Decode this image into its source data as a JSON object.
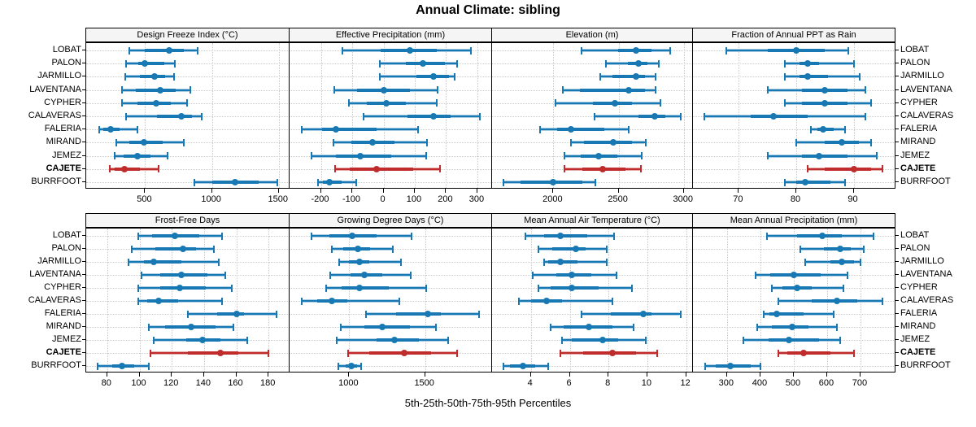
{
  "title": "Annual Climate: sibling",
  "caption": "5th-25th-50th-75th-95th Percentiles",
  "sites": [
    "LOBAT",
    "PALON",
    "JARMILLO",
    "LAVENTANA",
    "CYPHER",
    "CALAVERAS",
    "FALERIA",
    "MIRAND",
    "JEMEZ",
    "CAJETE",
    "BURRFOOT"
  ],
  "highlight_site": "CAJETE",
  "colors": {
    "series_main": "#1878b4",
    "series_light": "#a8cce4",
    "highlight_main": "#c02b2b",
    "highlight_light": "#e4a9a9",
    "grid": "#c9c9c9",
    "strip_bg": "#f5f5f5",
    "border": "#000000"
  },
  "chart_data": [
    {
      "type": "dotplot-interval",
      "title": "Design Freeze Index (°C)",
      "grid_row": 0,
      "grid_col": 0,
      "xlim": [
        60,
        1580
      ],
      "ticks": [
        500,
        1000,
        1500
      ],
      "percentile_labels": [
        "p5",
        "p25",
        "p50",
        "p75",
        "p95"
      ],
      "values": {
        "LOBAT": [
          380,
          500,
          680,
          790,
          890
        ],
        "PALON": [
          360,
          450,
          500,
          645,
          725
        ],
        "JARMILLO": [
          350,
          460,
          570,
          650,
          715
        ],
        "LAVENTANA": [
          325,
          430,
          610,
          730,
          835
        ],
        "CYPHER": [
          325,
          440,
          580,
          690,
          815
        ],
        "CALAVERAS": [
          355,
          590,
          770,
          850,
          925
        ],
        "FALERIA": [
          155,
          185,
          245,
          310,
          445
        ],
        "MIRAND": [
          285,
          380,
          490,
          630,
          790
        ],
        "JEMEZ": [
          270,
          340,
          440,
          540,
          670
        ],
        "CAJETE": [
          235,
          270,
          345,
          460,
          600
        ],
        "BURRFOOT": [
          870,
          1000,
          1170,
          1350,
          1490
        ]
      }
    },
    {
      "type": "dotplot-interval",
      "title": "Effective Precipitation (mm)",
      "grid_row": 0,
      "grid_col": 1,
      "xlim": [
        -300,
        347
      ],
      "ticks": [
        -200,
        -100,
        0,
        100,
        200,
        300
      ],
      "values": {
        "LOBAT": [
          -130,
          -8,
          85,
          170,
          280
        ],
        "PALON": [
          -13,
          71,
          127,
          196,
          234
        ],
        "JARMILLO": [
          -13,
          104,
          161,
          208,
          228
        ],
        "LAVENTANA": [
          -156,
          -85,
          0,
          85,
          174
        ],
        "CYPHER": [
          -110,
          -54,
          9,
          72,
          170
        ],
        "CALAVERAS": [
          -64,
          76,
          159,
          215,
          308
        ],
        "FALERIA": [
          -260,
          -197,
          -153,
          -23,
          110
        ],
        "MIRAND": [
          -160,
          -103,
          -34,
          35,
          140
        ],
        "JEMEZ": [
          -230,
          -153,
          -73,
          26,
          137
        ],
        "CAJETE": [
          -155,
          -107,
          -23,
          94,
          180
        ],
        "BURRFOOT": [
          -210,
          -194,
          -173,
          -133,
          -88
        ]
      }
    },
    {
      "type": "dotplot-interval",
      "title": "Elevation (m)",
      "grid_row": 0,
      "grid_col": 2,
      "xlim": [
        1530,
        3070
      ],
      "ticks": [
        2000,
        2500,
        3000
      ],
      "values": {
        "LOBAT": [
          2215,
          2495,
          2635,
          2755,
          2895
        ],
        "PALON": [
          2400,
          2570,
          2655,
          2720,
          2810
        ],
        "JARMILLO": [
          2360,
          2455,
          2635,
          2700,
          2780
        ],
        "LAVENTANA": [
          2075,
          2205,
          2575,
          2700,
          2780
        ],
        "CYPHER": [
          2015,
          2300,
          2470,
          2600,
          2820
        ],
        "CALAVERAS": [
          2315,
          2650,
          2775,
          2860,
          2975
        ],
        "FALERIA": [
          1900,
          2030,
          2135,
          2390,
          2575
        ],
        "MIRAND": [
          2135,
          2235,
          2460,
          2600,
          2705
        ],
        "JEMEZ": [
          2085,
          2210,
          2345,
          2490,
          2675
        ],
        "CAJETE": [
          2085,
          2220,
          2375,
          2550,
          2670
        ],
        "BURRFOOT": [
          1615,
          1750,
          1995,
          2220,
          2320
        ]
      }
    },
    {
      "type": "dotplot-interval",
      "title": "Fraction of Annual PPT as Rain",
      "grid_row": 0,
      "grid_col": 3,
      "xlim": [
        62,
        97.3
      ],
      "ticks": [
        70,
        80,
        90
      ],
      "values": {
        "LOBAT": [
          67.8,
          75,
          80,
          85,
          89
        ],
        "PALON": [
          78,
          80.5,
          82,
          84,
          90
        ],
        "JARMILLO": [
          78,
          80.5,
          82,
          85.5,
          91
        ],
        "LAVENTANA": [
          75,
          81,
          85,
          89,
          92
        ],
        "CYPHER": [
          78,
          81,
          85,
          89,
          93
        ],
        "CALAVERAS": [
          64,
          72,
          76,
          82,
          92
        ],
        "FALERIA": [
          82.5,
          83.7,
          84.7,
          86.5,
          88.5
        ],
        "MIRAND": [
          80,
          85,
          88,
          91,
          93
        ],
        "JEMEZ": [
          75,
          81,
          84,
          89,
          94
        ],
        "CAJETE": [
          82,
          85,
          90,
          93,
          95
        ],
        "BURRFOOT": [
          78,
          80,
          81.5,
          86,
          88.5
        ]
      }
    },
    {
      "type": "dotplot-interval",
      "title": "Frost-Free Days",
      "grid_row": 1,
      "grid_col": 0,
      "xlim": [
        67,
        193
      ],
      "ticks": [
        80,
        100,
        120,
        140,
        160,
        180
      ],
      "values": {
        "LOBAT": [
          99,
          108,
          122,
          137,
          151
        ],
        "PALON": [
          95,
          110,
          127,
          135,
          146
        ],
        "JARMILLO": [
          93,
          103,
          109,
          126,
          149
        ],
        "LAVENTANA": [
          101,
          113,
          126,
          142,
          153
        ],
        "CYPHER": [
          99,
          113,
          125,
          141,
          157
        ],
        "CALAVERAS": [
          99,
          105,
          112,
          124,
          151
        ],
        "FALERIA": [
          130,
          148,
          160,
          165,
          185
        ],
        "MIRAND": [
          106,
          116,
          132,
          147,
          158
        ],
        "JEMEZ": [
          109,
          129,
          139,
          150,
          167
        ],
        "CAJETE": [
          107,
          130,
          150,
          161,
          180
        ],
        "BURRFOOT": [
          74,
          83,
          89,
          97,
          106
        ]
      }
    },
    {
      "type": "dotplot-interval",
      "title": "Growing Degree Days (°C)",
      "grid_row": 1,
      "grid_col": 1,
      "xlim": [
        607,
        1941
      ],
      "ticks": [
        1000,
        1500
      ],
      "values": {
        "LOBAT": [
          750,
          870,
          1020,
          1180,
          1410
        ],
        "PALON": [
          885,
          960,
          1055,
          1140,
          1285
        ],
        "JARMILLO": [
          935,
          1000,
          1065,
          1130,
          1340
        ],
        "LAVENTANA": [
          875,
          1010,
          1100,
          1220,
          1405
        ],
        "CYPHER": [
          850,
          950,
          1070,
          1260,
          1505
        ],
        "CALAVERAS": [
          685,
          790,
          885,
          990,
          1330
        ],
        "FALERIA": [
          1110,
          1310,
          1520,
          1605,
          1855
        ],
        "MIRAND": [
          945,
          1100,
          1220,
          1400,
          1570
        ],
        "JEMEZ": [
          920,
          1180,
          1300,
          1460,
          1650
        ],
        "CAJETE": [
          995,
          1130,
          1360,
          1540,
          1710
        ],
        "BURRFOOT": [
          930,
          975,
          1015,
          1050,
          1080
        ]
      }
    },
    {
      "type": "dotplot-interval",
      "title": "Mean Annual Air Temperature (°C)",
      "grid_row": 1,
      "grid_col": 2,
      "xlim": [
        2.0,
        12.35
      ],
      "ticks": [
        4,
        6,
        8,
        10,
        12
      ],
      "values": {
        "LOBAT": [
          3.7,
          4.7,
          5.5,
          6.9,
          8.3
        ],
        "PALON": [
          4.4,
          5.1,
          6.3,
          6.8,
          7.9
        ],
        "JARMILLO": [
          4.7,
          4.9,
          5.5,
          6.4,
          7.9
        ],
        "LAVENTANA": [
          4.1,
          5.3,
          6.1,
          7.1,
          8.4
        ],
        "CYPHER": [
          4.4,
          5.0,
          6.1,
          7.5,
          9.2
        ],
        "CALAVERAS": [
          3.4,
          4.0,
          4.8,
          5.6,
          8.2
        ],
        "FALERIA": [
          6.6,
          8.1,
          9.8,
          10.2,
          11.7
        ],
        "MIRAND": [
          5.0,
          5.7,
          7.0,
          8.2,
          9.3
        ],
        "JEMEZ": [
          5.6,
          6.1,
          7.7,
          8.5,
          9.9
        ],
        "CAJETE": [
          5.5,
          6.7,
          8.2,
          9.4,
          10.5
        ],
        "BURRFOOT": [
          2.6,
          2.9,
          3.6,
          4.2,
          4.9
        ]
      }
    },
    {
      "type": "dotplot-interval",
      "title": "Mean Annual Precipitation (mm)",
      "grid_row": 1,
      "grid_col": 3,
      "xlim": [
        198,
        805
      ],
      "ticks": [
        300,
        400,
        500,
        600,
        700
      ],
      "values": {
        "LOBAT": [
          420,
          510,
          585,
          645,
          740
        ],
        "PALON": [
          520,
          590,
          640,
          670,
          710
        ],
        "JARMILLO": [
          535,
          610,
          645,
          680,
          700
        ],
        "LAVENTANA": [
          385,
          430,
          500,
          580,
          660
        ],
        "CYPHER": [
          435,
          465,
          510,
          555,
          650
        ],
        "CALAVERAS": [
          455,
          555,
          630,
          690,
          765
        ],
        "FALERIA": [
          410,
          428,
          450,
          530,
          620
        ],
        "MIRAND": [
          390,
          435,
          495,
          545,
          630
        ],
        "JEMEZ": [
          350,
          425,
          485,
          575,
          640
        ],
        "CAJETE": [
          455,
          480,
          530,
          610,
          680
        ],
        "BURRFOOT": [
          235,
          265,
          310,
          370,
          400
        ]
      }
    }
  ]
}
